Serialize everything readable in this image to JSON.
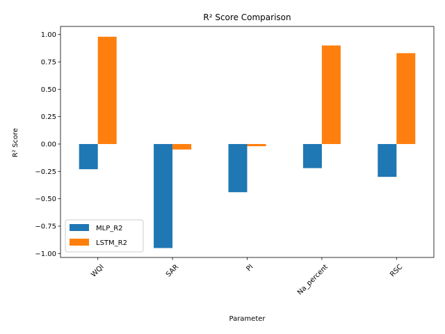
{
  "chart_data": {
    "type": "bar",
    "title": "R² Score Comparison",
    "xlabel": "Parameter",
    "ylabel": "R² Score",
    "categories": [
      "WQI",
      "SAR",
      "PI",
      "Na_percent",
      "RSC"
    ],
    "series": [
      {
        "name": "MLP_R2",
        "values": [
          -0.23,
          -0.95,
          -0.44,
          -0.22,
          -0.3
        ],
        "color": "#1f77b4"
      },
      {
        "name": "LSTM_R2",
        "values": [
          0.98,
          -0.05,
          -0.02,
          0.9,
          0.83
        ],
        "color": "#ff7f0e"
      }
    ],
    "ylim": [
      -1.036,
      1.074
    ],
    "yticks": [
      -1.0,
      -0.75,
      -0.5,
      -0.25,
      0.0,
      0.25,
      0.5,
      0.75,
      1.0
    ],
    "ytick_labels": [
      "−1.00",
      "−0.75",
      "−0.50",
      "−0.25",
      "0.00",
      "0.25",
      "0.50",
      "0.75",
      "1.00"
    ],
    "grid": false,
    "legend_position": "lower-left",
    "xtick_rotation": 45
  }
}
